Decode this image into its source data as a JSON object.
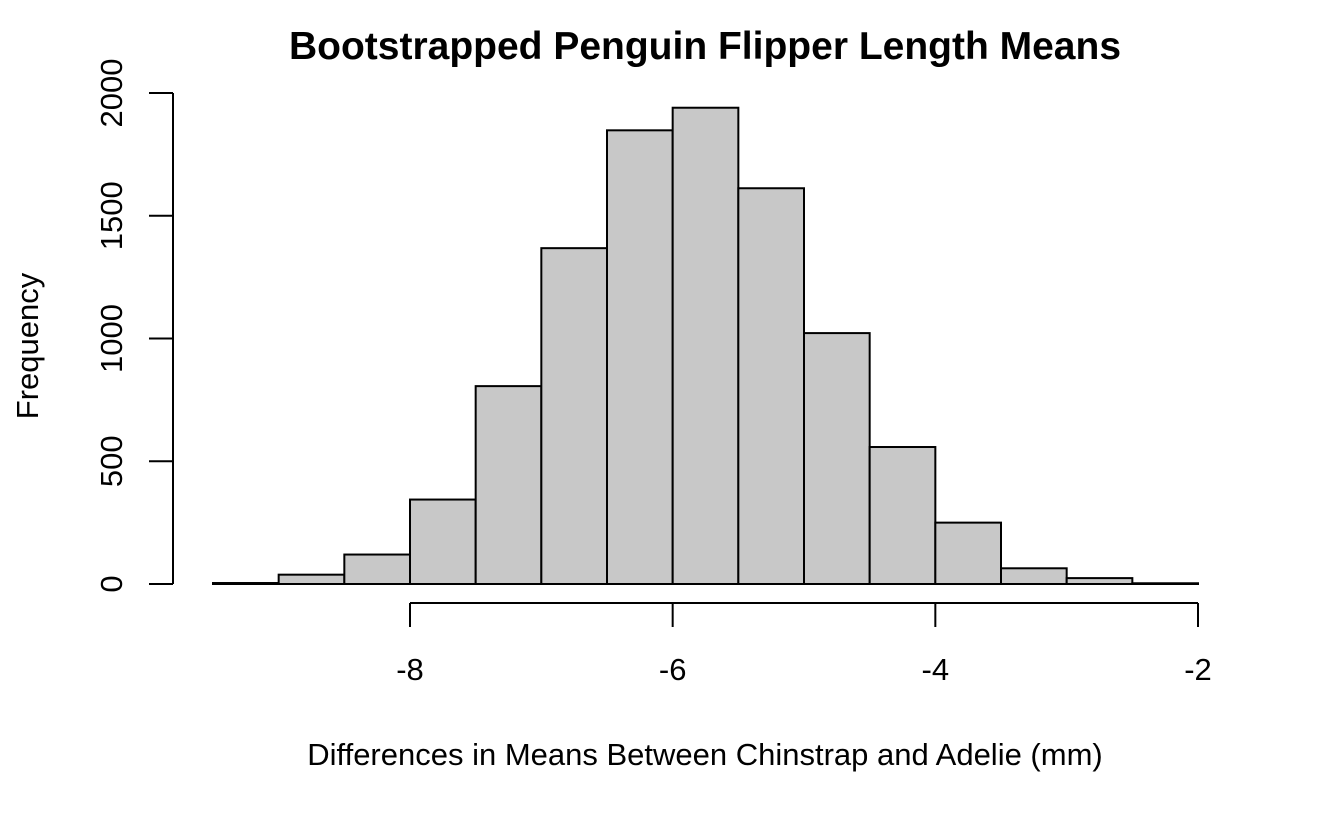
{
  "chart_data": {
    "type": "bar",
    "title": "Bootstrapped Penguin Flipper Length Means",
    "xlabel": "Differences in Means Between Chinstrap and Adelie (mm)",
    "ylabel": "Frequency",
    "bin_edges": [
      -9.5,
      -9.0,
      -8.5,
      -8.0,
      -7.5,
      -7.0,
      -6.5,
      -6.0,
      -5.5,
      -5.0,
      -4.5,
      -4.0,
      -3.5,
      -3.0,
      -2.5,
      -2.0
    ],
    "values": [
      4,
      38,
      120,
      344,
      806,
      1368,
      1848,
      1940,
      1612,
      1022,
      558,
      250,
      64,
      24,
      3
    ],
    "xlim": [
      -9.5,
      -2.0
    ],
    "ylim": [
      0,
      2000
    ],
    "x_ticks": [
      -8,
      -6,
      -4,
      -2
    ],
    "y_ticks": [
      0,
      500,
      1000,
      1500,
      2000
    ],
    "grid": false,
    "legend": "none",
    "colors": {
      "bar_fill": "#c8c8c8",
      "bar_stroke": "#000000"
    }
  }
}
